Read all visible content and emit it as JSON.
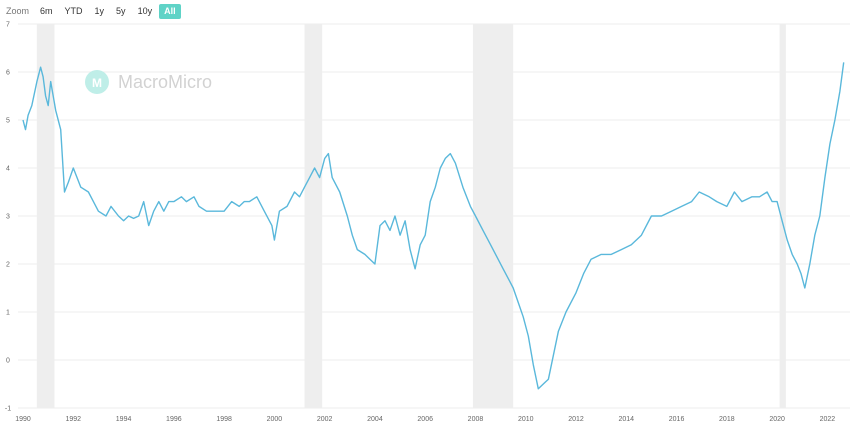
{
  "toolbar": {
    "zoom_label": "Zoom",
    "buttons": [
      "6m",
      "YTD",
      "1y",
      "5y",
      "10y",
      "All"
    ],
    "active": "All"
  },
  "watermark": {
    "text": "MacroMicro",
    "logo_text": "M"
  },
  "colors": {
    "line": "#5ab8db",
    "recession_band": "#eeeeee",
    "grid": "#eeeeee",
    "accent": "#5fd3c7"
  },
  "chart_data": {
    "type": "line",
    "xlim": [
      1989.8,
      2022.9
    ],
    "ylim": [
      -1,
      7
    ],
    "yticks": [
      -1,
      0,
      1,
      2,
      3,
      4,
      5,
      6,
      7
    ],
    "xticks": [
      1990,
      1992,
      1994,
      1996,
      1998,
      2000,
      2002,
      2004,
      2006,
      2008,
      2010,
      2012,
      2014,
      2016,
      2018,
      2020,
      2022
    ],
    "grid": true,
    "recessions": [
      [
        1990.55,
        1991.25
      ],
      [
        2001.2,
        2001.9
      ],
      [
        2007.9,
        2009.5
      ],
      [
        2020.1,
        2020.35
      ]
    ],
    "series": [
      {
        "x": [
          1990.0,
          1990.1,
          1990.2,
          1990.35,
          1990.55,
          1990.7,
          1990.8,
          1990.9,
          1991.0,
          1991.1,
          1991.3,
          1991.5,
          1991.65,
          1991.8,
          1992.0,
          1992.3,
          1992.6,
          1992.8,
          1993.0,
          1993.3,
          1993.5,
          1993.8,
          1994.0,
          1994.2,
          1994.4,
          1994.6,
          1994.8,
          1995.0,
          1995.2,
          1995.4,
          1995.6,
          1995.8,
          1996.0,
          1996.3,
          1996.5,
          1996.8,
          1997.0,
          1997.3,
          1997.6,
          1998.0,
          1998.3,
          1998.6,
          1998.8,
          1999.0,
          1999.3,
          1999.6,
          1999.9,
          2000.0,
          2000.2,
          2000.5,
          2000.8,
          2001.0,
          2001.2,
          2001.4,
          2001.6,
          2001.8,
          2002.0,
          2002.15,
          2002.3,
          2002.6,
          2002.9,
          2003.1,
          2003.3,
          2003.6,
          2003.8,
          2004.0,
          2004.2,
          2004.4,
          2004.6,
          2004.8,
          2005.0,
          2005.2,
          2005.4,
          2005.6,
          2005.8,
          2006.0,
          2006.2,
          2006.4,
          2006.6,
          2006.8,
          2007.0,
          2007.2,
          2007.5,
          2007.8,
          2008.0,
          2008.3,
          2008.6,
          2008.9,
          2009.1,
          2009.3,
          2009.5,
          2009.7,
          2009.9,
          2010.1,
          2010.3,
          2010.5,
          2010.7,
          2010.9,
          2011.1,
          2011.3,
          2011.6,
          2012.0,
          2012.3,
          2012.6,
          2013.0,
          2013.4,
          2013.8,
          2014.2,
          2014.6,
          2015.0,
          2015.4,
          2015.8,
          2016.2,
          2016.6,
          2016.9,
          2017.3,
          2017.6,
          2018.0,
          2018.3,
          2018.6,
          2019.0,
          2019.3,
          2019.6,
          2019.8,
          2020.0,
          2020.2,
          2020.4,
          2020.6,
          2020.8,
          2020.95,
          2021.1,
          2021.3,
          2021.5,
          2021.7,
          2021.9,
          2022.1,
          2022.3,
          2022.5,
          2022.65
        ],
        "y": [
          5.0,
          4.8,
          5.1,
          5.3,
          5.8,
          6.1,
          5.9,
          5.5,
          5.3,
          5.8,
          5.2,
          4.8,
          3.5,
          3.7,
          4.0,
          3.6,
          3.5,
          3.3,
          3.1,
          3.0,
          3.2,
          3.0,
          2.9,
          3.0,
          2.95,
          3.0,
          3.3,
          2.8,
          3.1,
          3.3,
          3.1,
          3.3,
          3.3,
          3.4,
          3.3,
          3.4,
          3.2,
          3.1,
          3.1,
          3.1,
          3.3,
          3.2,
          3.3,
          3.3,
          3.4,
          3.1,
          2.8,
          2.5,
          3.1,
          3.2,
          3.5,
          3.4,
          3.6,
          3.8,
          4.0,
          3.8,
          4.2,
          4.3,
          3.8,
          3.5,
          3.0,
          2.6,
          2.3,
          2.2,
          2.1,
          2.0,
          2.8,
          2.9,
          2.7,
          3.0,
          2.6,
          2.9,
          2.3,
          1.9,
          2.4,
          2.6,
          3.3,
          3.6,
          4.0,
          4.2,
          4.3,
          4.1,
          3.6,
          3.2,
          3.0,
          2.7,
          2.4,
          2.1,
          1.9,
          1.7,
          1.5,
          1.2,
          0.9,
          0.5,
          -0.1,
          -0.6,
          -0.5,
          -0.4,
          0.1,
          0.6,
          1.0,
          1.4,
          1.8,
          2.1,
          2.2,
          2.2,
          2.3,
          2.4,
          2.6,
          3.0,
          3.0,
          3.1,
          3.2,
          3.3,
          3.5,
          3.4,
          3.3,
          3.2,
          3.5,
          3.3,
          3.4,
          3.4,
          3.5,
          3.3,
          3.3,
          2.9,
          2.5,
          2.2,
          2.0,
          1.8,
          1.5,
          2.0,
          2.6,
          3.0,
          3.8,
          4.5,
          5.0,
          5.6,
          6.2
        ]
      }
    ]
  }
}
